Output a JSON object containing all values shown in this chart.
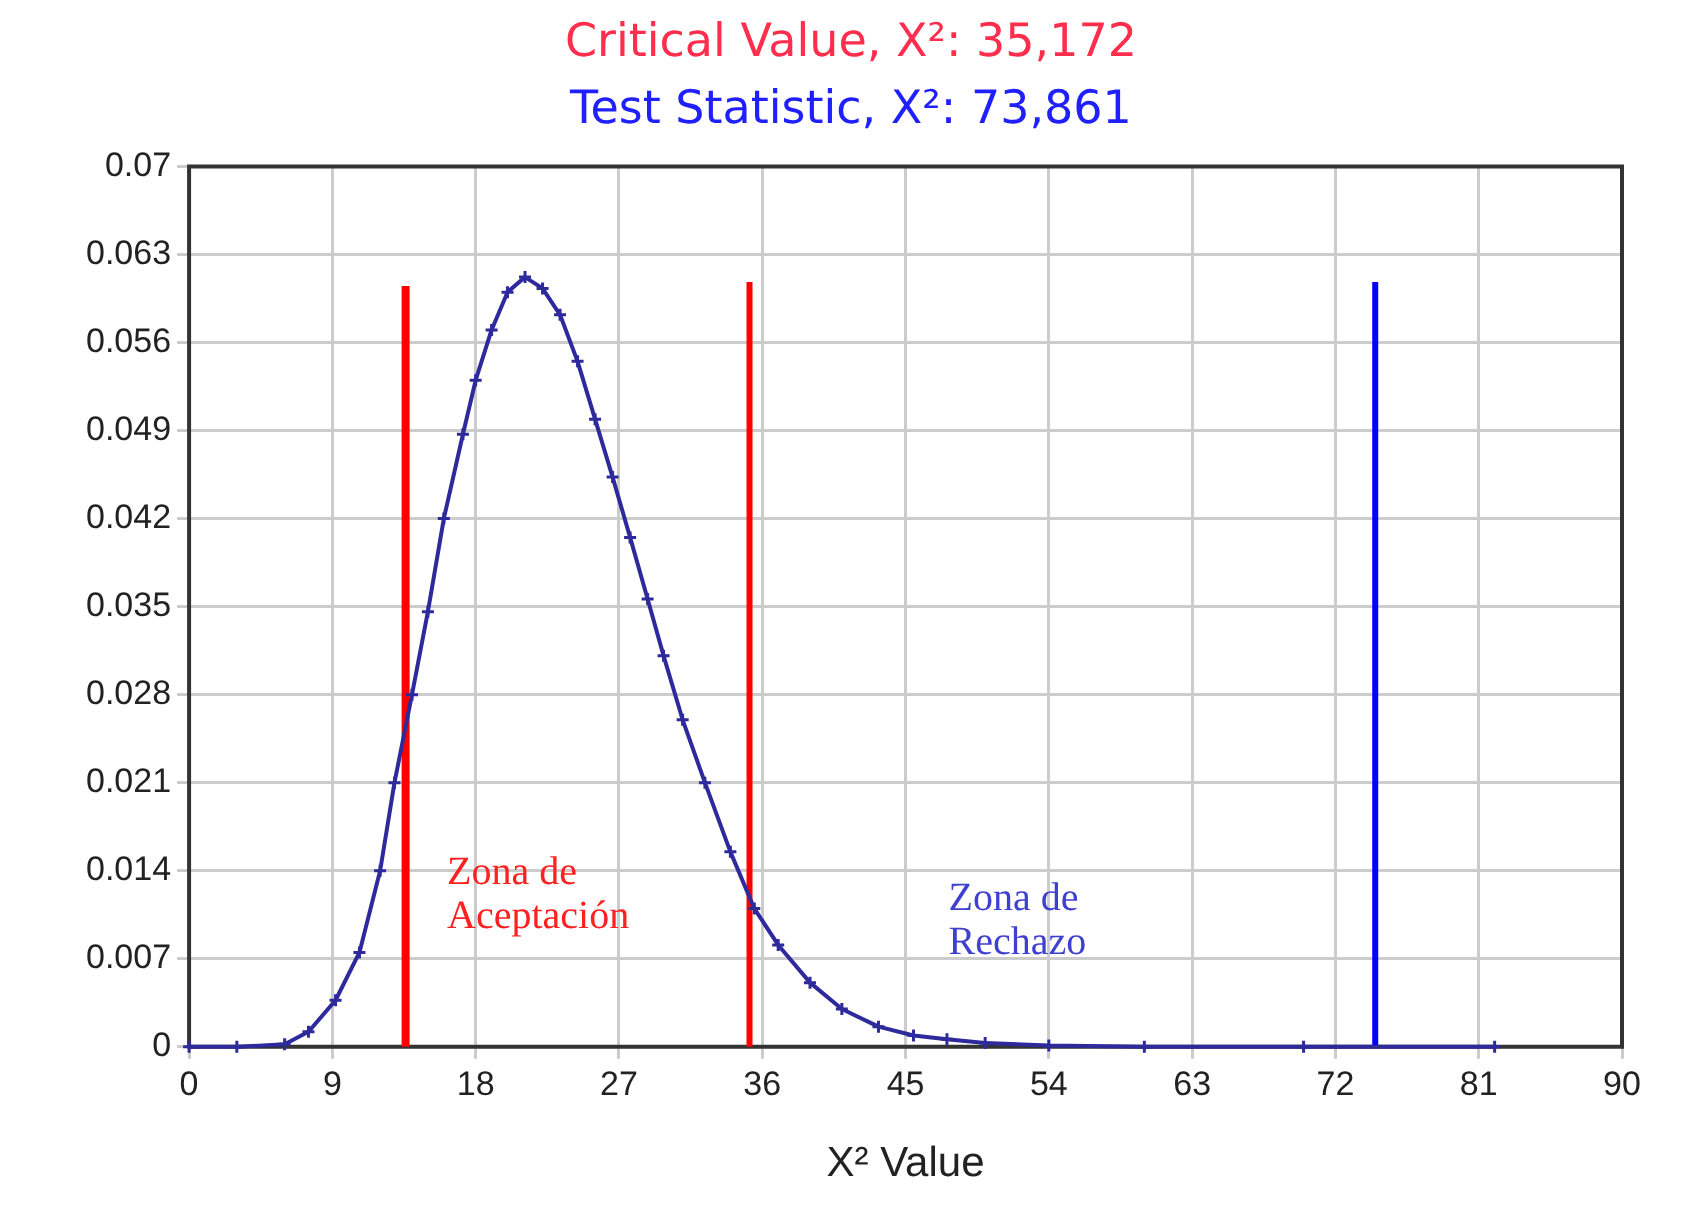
{
  "chart_data": {
    "type": "line",
    "title": "Critical Value, X²: 35,172",
    "subtitle": "Test Statistic, X²: 73,861",
    "xlabel": "X² Value",
    "xlim": [
      0,
      90
    ],
    "xticks": [
      0,
      9,
      18,
      27,
      36,
      45,
      54,
      63,
      72,
      81,
      90
    ],
    "ylim": [
      0,
      0.07
    ],
    "yticks": [
      0,
      0.007,
      0.014,
      0.021,
      0.028,
      0.035,
      0.042,
      0.049,
      0.056,
      0.063,
      0.07
    ],
    "grid": true,
    "legend": false,
    "annotations": [
      "Zona de Aceptación",
      "Zona de Rechazo"
    ],
    "series": [
      {
        "color": "#2e2a9c",
        "marker": "cross",
        "x": [
          0,
          3,
          6,
          7.5,
          9.2,
          10.7,
          12,
          12.9,
          14,
          15,
          16,
          17.2,
          18,
          19,
          20,
          21.1,
          22.2,
          23.3,
          24.4,
          25.5,
          26.6,
          27.7,
          28.8,
          29.8,
          31,
          32.4,
          34,
          35.5,
          37,
          39,
          41,
          43.3,
          45.5,
          47.6,
          50,
          54,
          60,
          70,
          82
        ],
        "values": [
          0,
          0,
          0.0002,
          0.0012,
          0.0037,
          0.0075,
          0.014,
          0.021,
          0.028,
          0.0346,
          0.042,
          0.0487,
          0.053,
          0.057,
          0.06,
          0.0612,
          0.0603,
          0.0582,
          0.0545,
          0.0499,
          0.0453,
          0.0405,
          0.0356,
          0.0311,
          0.026,
          0.021,
          0.0155,
          0.011,
          0.0081,
          0.0051,
          0.003,
          0.0016,
          0.0009,
          0.0006,
          0.0003,
          0.0001,
          0,
          0,
          0
        ]
      },
      {
        "color": "#ff0000",
        "marker": "none",
        "x": [
          13.6,
          13.6
        ],
        "values": [
          0,
          0.0605
        ]
      },
      {
        "color": "#ff0000",
        "marker": "none",
        "x": [
          35.2,
          35.2
        ],
        "values": [
          0,
          0.0608
        ]
      },
      {
        "color": "#0000ff",
        "marker": "none",
        "x": [
          74.5,
          74.5
        ],
        "values": [
          0,
          0.0608
        ]
      }
    ]
  }
}
